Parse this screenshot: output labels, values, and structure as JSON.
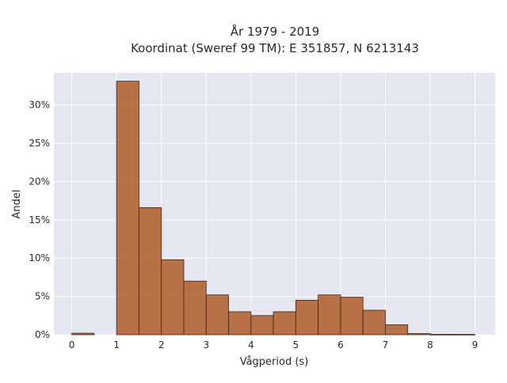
{
  "chart_data": {
    "type": "bar",
    "title_lines": [
      "År 1979 - 2019",
      "Koordinat (Sweref 99 TM): E 351857, N 6213143"
    ],
    "xlabel": "Vågperiod (s)",
    "ylabel": "Andel",
    "x_ticks": [
      0,
      1,
      2,
      3,
      4,
      5,
      6,
      7,
      8,
      9
    ],
    "y_ticks": [
      0,
      5,
      10,
      15,
      20,
      25,
      30
    ],
    "y_tick_labels": [
      "0%",
      "5%",
      "10%",
      "15%",
      "20%",
      "25%",
      "30%"
    ],
    "xlim": [
      -0.4,
      9.45
    ],
    "ylim": [
      0,
      34.2
    ],
    "bin_width": 0.5,
    "bin_starts": [
      0,
      0.5,
      1,
      1.5,
      2,
      2.5,
      3,
      3.5,
      4,
      4.5,
      5,
      5.5,
      6,
      6.5,
      7,
      7.5,
      8,
      8.5
    ],
    "values": [
      0.2,
      0.0,
      33.1,
      16.6,
      9.8,
      7.0,
      5.2,
      3.0,
      2.5,
      3.0,
      4.5,
      5.2,
      4.9,
      3.2,
      1.3,
      0.15,
      0.05,
      0.05
    ],
    "grid": true,
    "bar_color": "#b5693d",
    "bar_edge_color": "#3a2418",
    "plot_background": "#e5e7f0",
    "grid_color": "#ffffff"
  }
}
